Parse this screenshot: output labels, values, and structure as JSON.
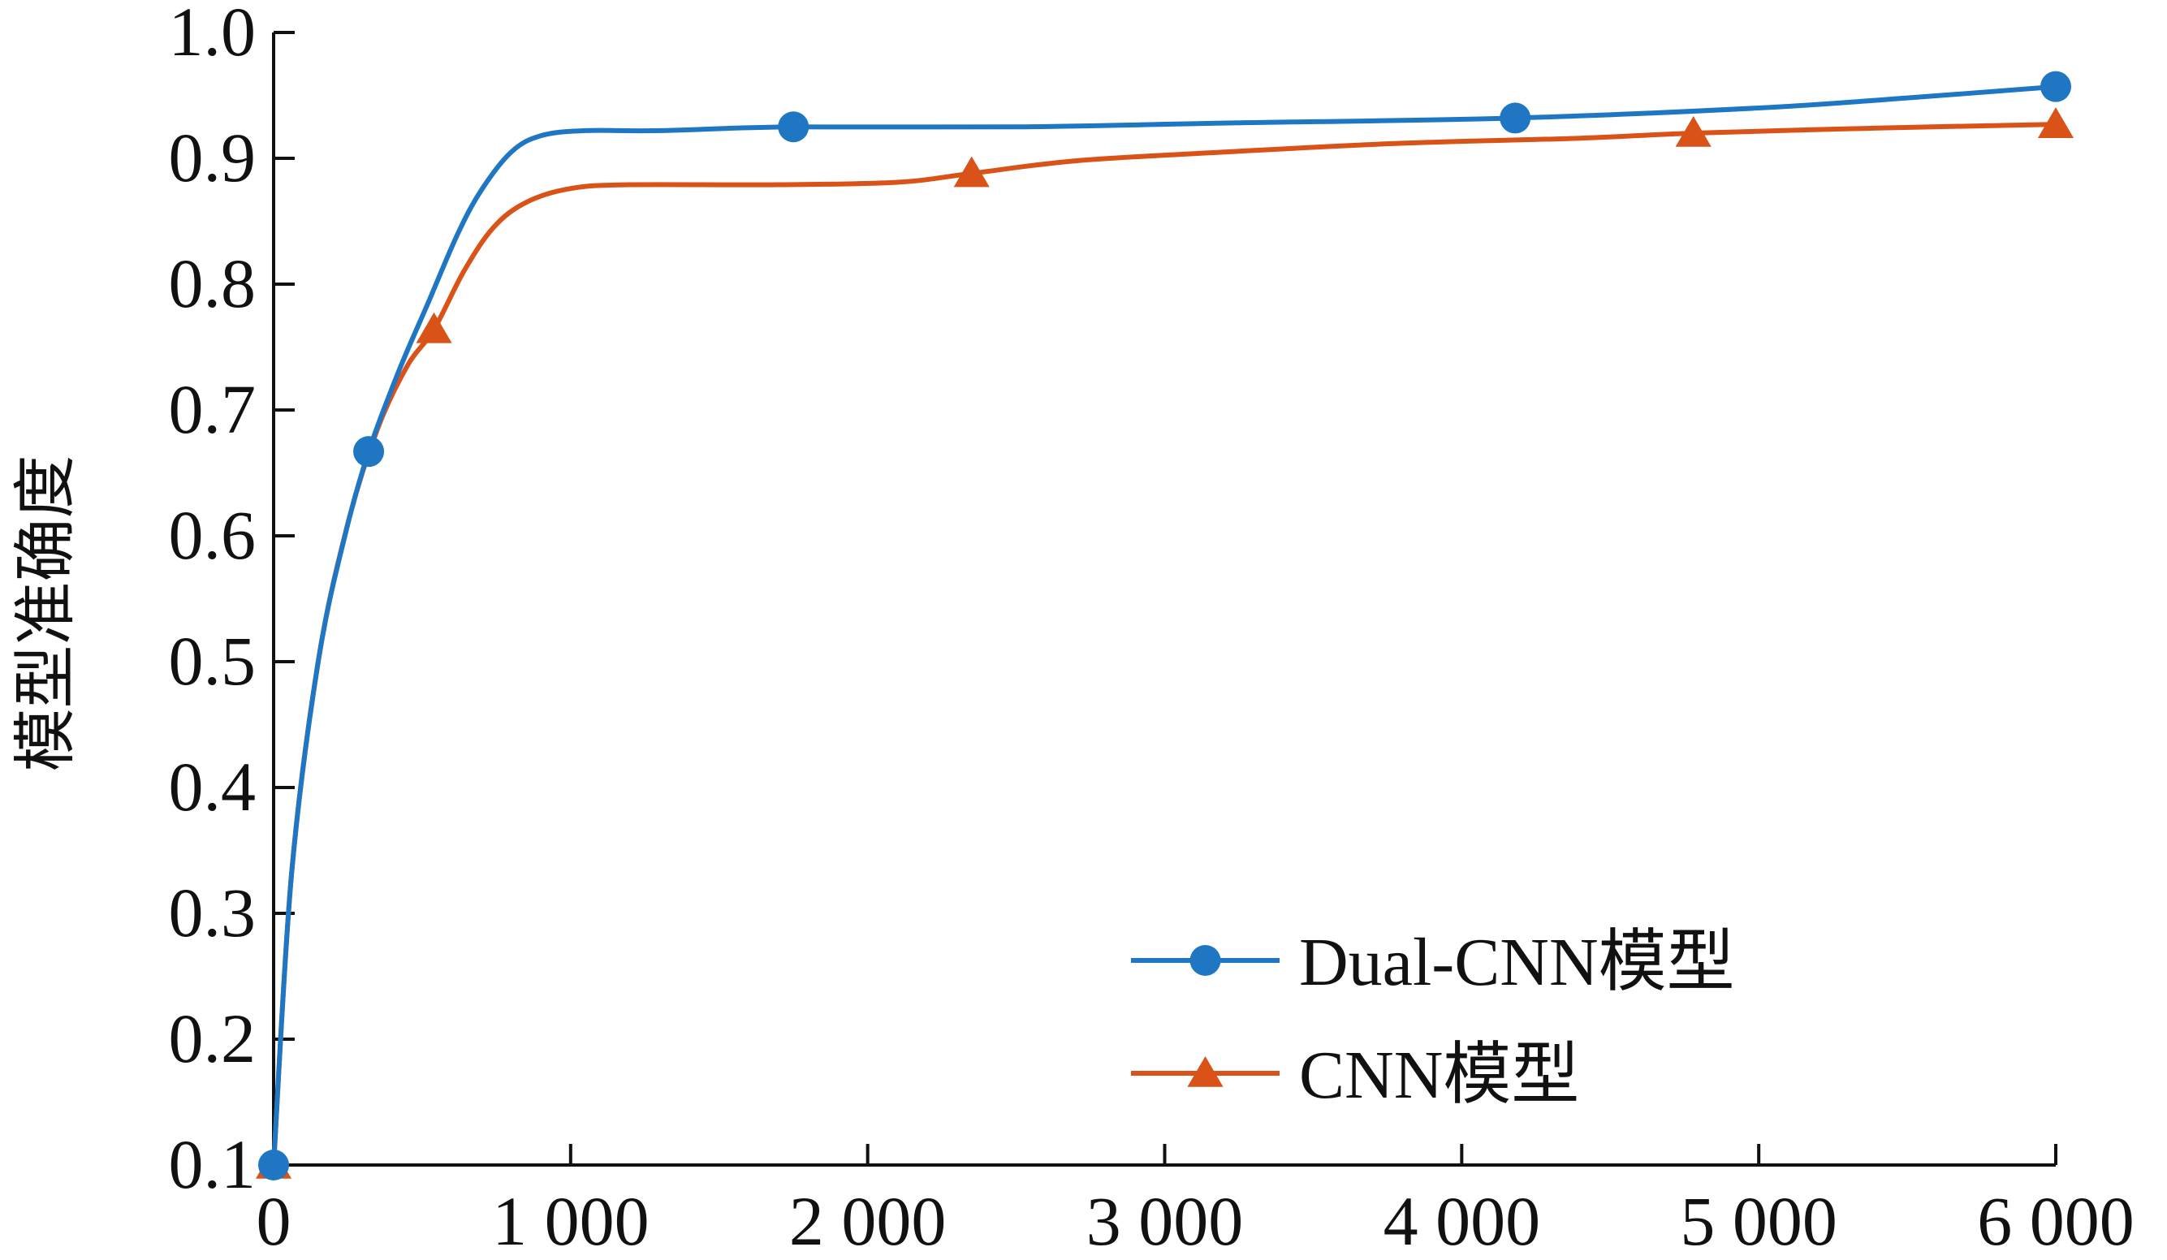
{
  "chart_data": {
    "type": "line",
    "xlabel": "",
    "ylabel": "模型准确度",
    "xlim": [
      0,
      6000
    ],
    "ylim": [
      0.1,
      1.0
    ],
    "x_ticks": [
      0,
      1000,
      2000,
      3000,
      4000,
      5000,
      6000
    ],
    "x_tick_labels": [
      "0",
      "1 000",
      "2 000",
      "3 000",
      "4 000",
      "5 000",
      "6 000"
    ],
    "y_ticks": [
      0.1,
      0.2,
      0.3,
      0.4,
      0.5,
      0.6,
      0.7,
      0.8,
      0.9,
      1.0
    ],
    "y_tick_labels": [
      "0.1",
      "0.2",
      "0.3",
      "0.4",
      "0.5",
      "0.6",
      "0.7",
      "0.8",
      "0.9",
      "1.0"
    ],
    "grid": false,
    "legend_position": "bottom-right",
    "series": [
      {
        "name": "Dual-CNN模型",
        "color": "#1f77c4",
        "marker": "circle",
        "points": [
          [
            0,
            0.1
          ],
          [
            320,
            0.667
          ],
          [
            1750,
            0.925
          ],
          [
            4180,
            0.932
          ],
          [
            6000,
            0.957
          ]
        ],
        "curve": [
          [
            0,
            0.1
          ],
          [
            60,
            0.33
          ],
          [
            150,
            0.5
          ],
          [
            240,
            0.6
          ],
          [
            320,
            0.667
          ],
          [
            420,
            0.73
          ],
          [
            520,
            0.785
          ],
          [
            620,
            0.84
          ],
          [
            700,
            0.875
          ],
          [
            800,
            0.905
          ],
          [
            900,
            0.918
          ],
          [
            1050,
            0.922
          ],
          [
            1300,
            0.922
          ],
          [
            1750,
            0.925
          ],
          [
            2500,
            0.925
          ],
          [
            3200,
            0.928
          ],
          [
            4180,
            0.932
          ],
          [
            5000,
            0.94
          ],
          [
            5500,
            0.948
          ],
          [
            6000,
            0.957
          ]
        ]
      },
      {
        "name": "CNN模型",
        "color": "#d95319",
        "marker": "triangle",
        "points": [
          [
            0,
            0.1
          ],
          [
            540,
            0.764
          ],
          [
            2350,
            0.888
          ],
          [
            4780,
            0.92
          ],
          [
            6000,
            0.927
          ]
        ],
        "curve": [
          [
            0,
            0.1
          ],
          [
            60,
            0.33
          ],
          [
            150,
            0.5
          ],
          [
            250,
            0.61
          ],
          [
            350,
            0.685
          ],
          [
            450,
            0.735
          ],
          [
            540,
            0.764
          ],
          [
            640,
            0.81
          ],
          [
            740,
            0.845
          ],
          [
            850,
            0.865
          ],
          [
            1000,
            0.876
          ],
          [
            1200,
            0.879
          ],
          [
            1700,
            0.879
          ],
          [
            2100,
            0.881
          ],
          [
            2350,
            0.888
          ],
          [
            2700,
            0.898
          ],
          [
            3200,
            0.905
          ],
          [
            3800,
            0.912
          ],
          [
            4400,
            0.916
          ],
          [
            4780,
            0.92
          ],
          [
            5400,
            0.924
          ],
          [
            6000,
            0.927
          ]
        ]
      }
    ]
  }
}
